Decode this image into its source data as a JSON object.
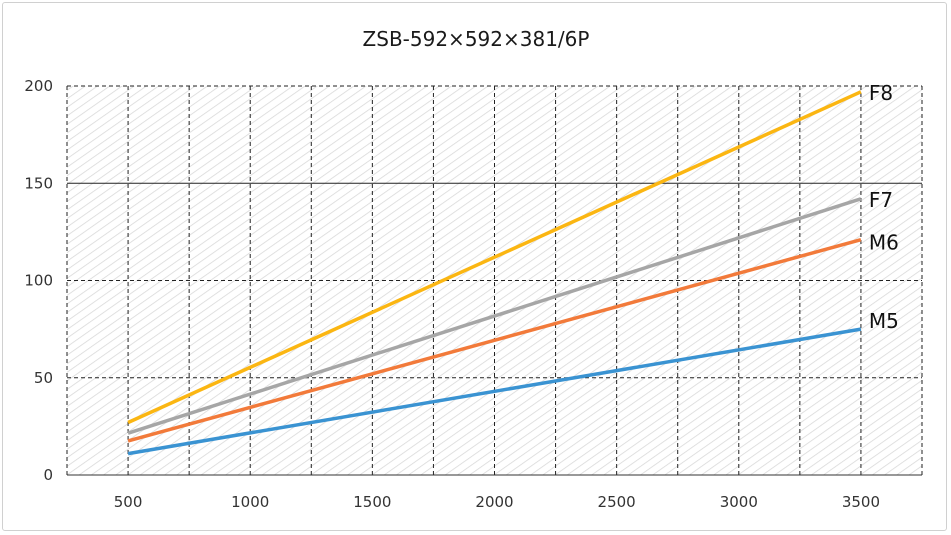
{
  "chart_data": {
    "type": "line",
    "title": "ZSB-592×592×381/6P",
    "xlabel": "",
    "ylabel": "",
    "x": [
      500,
      3500
    ],
    "xlim": [
      250,
      3750
    ],
    "ylim": [
      0,
      200
    ],
    "x_ticks": [
      500,
      1000,
      1500,
      2000,
      2500,
      3000,
      3500
    ],
    "x_tick_labels": [
      "500",
      "1000",
      "1500",
      "2000",
      "2500",
      "3000",
      "3500"
    ],
    "y_ticks": [
      0,
      50,
      100,
      150,
      200
    ],
    "y_tick_labels": [
      "0",
      "50",
      "100",
      "150",
      "200"
    ],
    "grid": true,
    "legend": "end-of-line labels",
    "series": [
      {
        "name": "M5",
        "values": [
          11,
          75
        ],
        "color": "#3a93d2"
      },
      {
        "name": "M6",
        "values": [
          17.5,
          121
        ],
        "color": "#f27a3a"
      },
      {
        "name": "F7",
        "values": [
          21.5,
          142
        ],
        "color": "#a6a6a6"
      },
      {
        "name": "F8",
        "values": [
          27,
          197
        ],
        "color": "#fbb612"
      }
    ]
  }
}
